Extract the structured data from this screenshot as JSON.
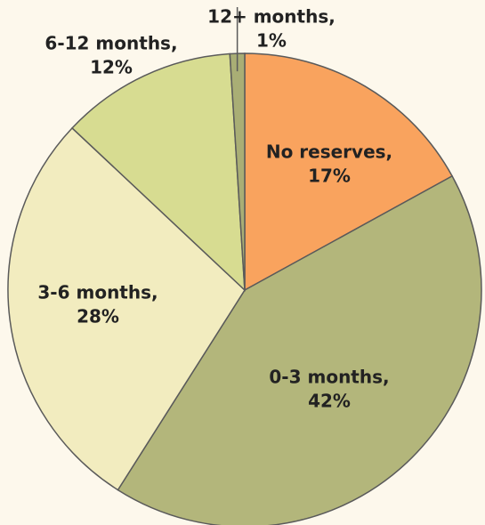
{
  "chart_data": {
    "type": "pie",
    "categories": [
      "No reserves,",
      "0-3 months,",
      "3-6 months,",
      "6-12 months,",
      "12+ months,"
    ],
    "values": [
      17,
      42,
      28,
      12,
      1
    ],
    "value_labels": [
      "17%",
      "42%",
      "28%",
      "12%",
      "1%"
    ],
    "colors": [
      "#f9a35e",
      "#b3b67b",
      "#f2ecbf",
      "#d7dc91",
      "#a9ae75"
    ]
  }
}
